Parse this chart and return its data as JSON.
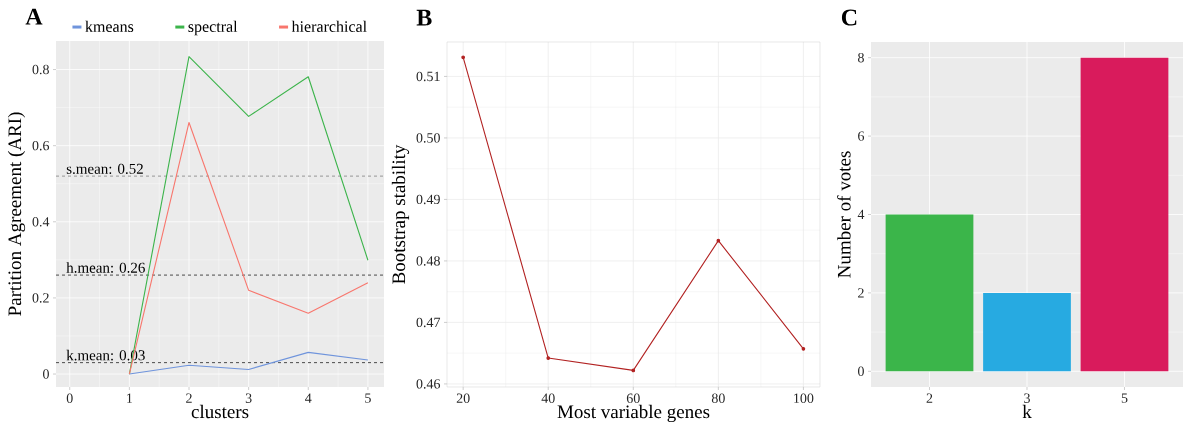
{
  "chart_data": [
    {
      "type": "line",
      "title": "A",
      "xlabel": "clusters",
      "ylabel": "Partition Agreement (ARI)",
      "x": [
        1,
        2,
        3,
        4,
        5
      ],
      "series": [
        {
          "name": "kmeans",
          "color": "#6f94dc",
          "values": [
            0,
            0.023,
            0.012,
            0.057,
            0.037
          ]
        },
        {
          "name": "spectral",
          "color": "#3cb44b",
          "values": [
            0,
            0.834,
            0.677,
            0.781,
            0.299
          ]
        },
        {
          "name": "hierarchical",
          "color": "#f8766d",
          "values": [
            0,
            0.661,
            0.22,
            0.16,
            0.24
          ]
        }
      ],
      "xlim": [
        -0.23,
        5.27
      ],
      "xticks": [
        0,
        1,
        2,
        3,
        4,
        5
      ],
      "ylim": [
        -0.034,
        0.875
      ],
      "yticks": [
        0,
        0.2,
        0.4,
        0.6,
        0.8
      ],
      "ref_lines": [
        {
          "axis": "y",
          "value": 0.52,
          "label": "s.mean: 0.52",
          "color": "#808080",
          "line_style": "dashed"
        },
        {
          "axis": "y",
          "value": 0.26,
          "label": "h.mean: 0.26",
          "color": "#222222",
          "line_style": "dashed"
        },
        {
          "axis": "y",
          "value": 0.03,
          "label": "k.mean: 0.03",
          "color": "#222222",
          "line_style": "dashed"
        }
      ],
      "grid": true,
      "legend": "top",
      "line_style": "solid"
    },
    {
      "type": "line",
      "title": "B",
      "xlabel": "Most variable genes",
      "ylabel": "Bootstrap stability",
      "x": [
        20,
        40,
        60,
        80,
        100
      ],
      "series": [
        {
          "color": "#b22222",
          "values": [
            0.5131,
            0.4642,
            0.4622,
            0.4833,
            0.4657
          ]
        }
      ],
      "xlim": [
        16.2,
        103.9
      ],
      "xticks": [
        20,
        40,
        60,
        80,
        100
      ],
      "ylim": [
        0.4595,
        0.5156
      ],
      "yticks": [
        0.46,
        0.47,
        0.48,
        0.49,
        {
          "value": 0.5,
          "label": "0.50"
        },
        0.51
      ],
      "grid": true,
      "marker": "circle",
      "line_style": "solid"
    },
    {
      "type": "bar",
      "title": "C",
      "xlabel": "k",
      "ylabel": "Number of votes",
      "categories": [
        "2",
        "3",
        "5"
      ],
      "values": [
        4,
        2,
        8
      ],
      "colors": [
        "#3bb54a",
        "#27aae1",
        "#d91b5c"
      ],
      "ylim": [
        -0.4,
        8.4
      ],
      "yticks": [
        0,
        2,
        4,
        6,
        8
      ],
      "grid": true
    }
  ]
}
